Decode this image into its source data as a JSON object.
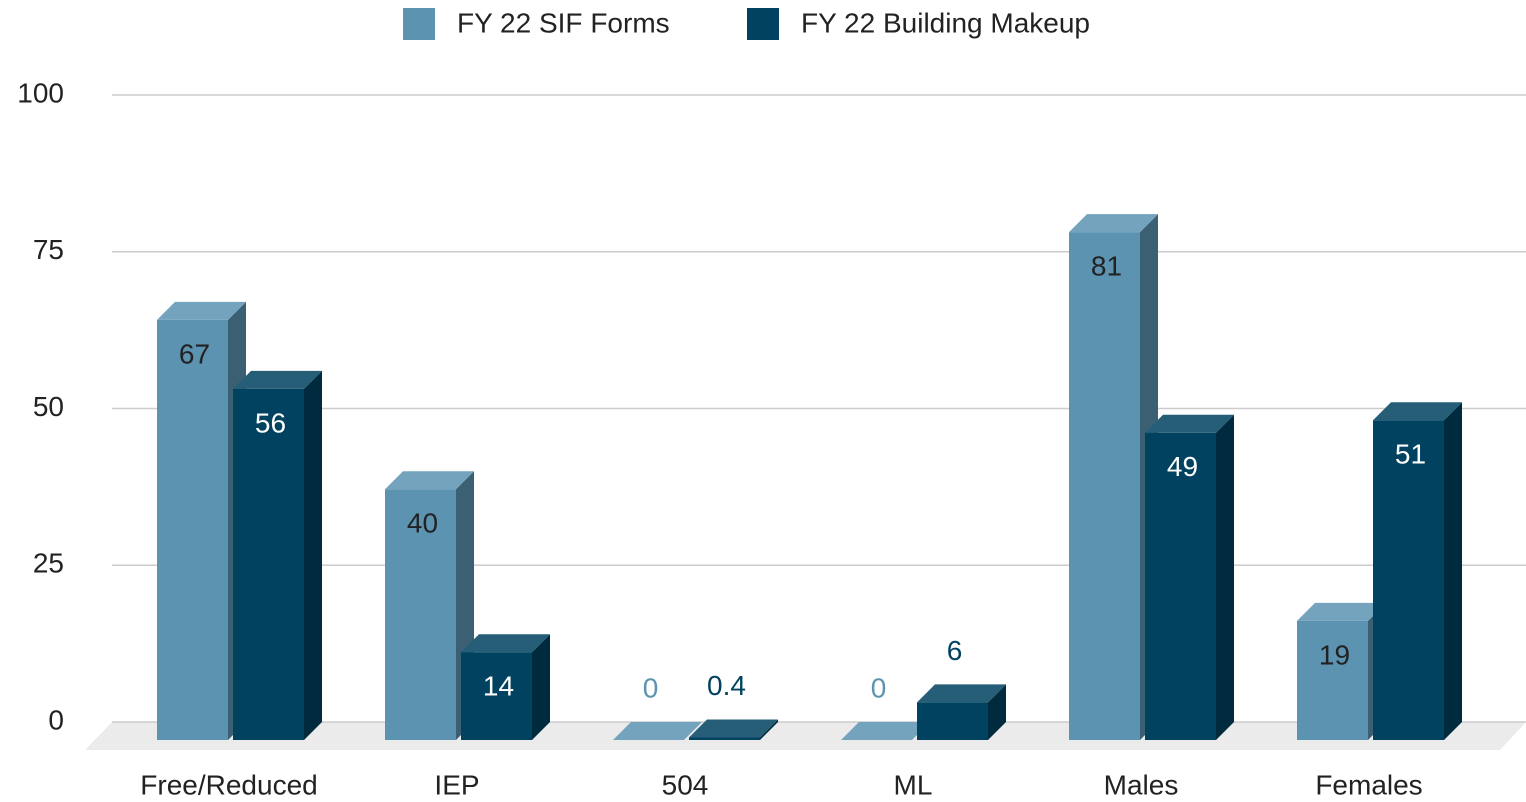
{
  "chart_data": {
    "type": "bar",
    "categories": [
      "Free/Reduced",
      "IEP",
      "504",
      "ML",
      "Males",
      "Females"
    ],
    "series": [
      {
        "name": "FY 22 SIF Forms",
        "color": "#5b93b1",
        "values": [
          67,
          40,
          0,
          0,
          81,
          19
        ]
      },
      {
        "name": "FY 22 Building Makeup",
        "color": "#00425f",
        "values": [
          56,
          14,
          0.4,
          6,
          49,
          51
        ]
      }
    ],
    "ylim": [
      0,
      100
    ],
    "yticks": [
      0,
      25,
      50,
      75,
      100
    ],
    "grid": true,
    "legend": "top"
  }
}
